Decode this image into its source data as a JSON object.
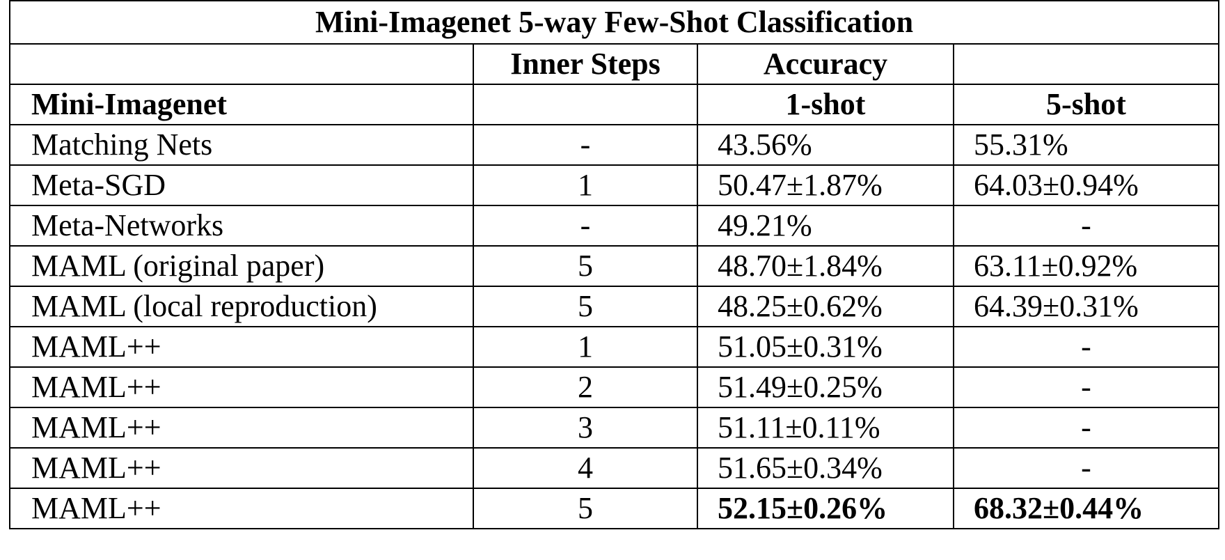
{
  "table": {
    "title": "Mini-Imagenet 5-way Few-Shot Classification",
    "header_row1": {
      "col0": "",
      "inner_steps": "Inner Steps",
      "accuracy": "Accuracy",
      "col3": ""
    },
    "header_row2": {
      "dataset": "Mini-Imagenet",
      "col1": "",
      "one_shot": "1-shot",
      "five_shot": "5-shot"
    },
    "rows": [
      {
        "method": "Matching Nets",
        "steps": "-",
        "one_shot": "43.56%",
        "five_shot": "55.31%"
      },
      {
        "method": "Meta-SGD",
        "steps": "1",
        "one_shot": "50.47±1.87%",
        "five_shot": "64.03±0.94%"
      },
      {
        "method": "Meta-Networks",
        "steps": "-",
        "one_shot": "49.21%",
        "five_shot": "-"
      },
      {
        "method": "MAML (original paper)",
        "steps": "5",
        "one_shot": "48.70±1.84%",
        "five_shot": "63.11±0.92%"
      },
      {
        "method": "MAML (local reproduction)",
        "steps": "5",
        "one_shot": "48.25±0.62%",
        "five_shot": "64.39±0.31%"
      },
      {
        "method": "MAML++",
        "steps": "1",
        "one_shot": "51.05±0.31%",
        "five_shot": "-"
      },
      {
        "method": "MAML++",
        "steps": "2",
        "one_shot": "51.49±0.25%",
        "five_shot": "-"
      },
      {
        "method": "MAML++",
        "steps": "3",
        "one_shot": "51.11±0.11%",
        "five_shot": "-"
      },
      {
        "method": "MAML++",
        "steps": "4",
        "one_shot": "51.65±0.34%",
        "five_shot": "-"
      },
      {
        "method": "MAML++",
        "steps": "5",
        "one_shot": "52.15±0.26%",
        "five_shot": "68.32±0.44%"
      }
    ]
  }
}
